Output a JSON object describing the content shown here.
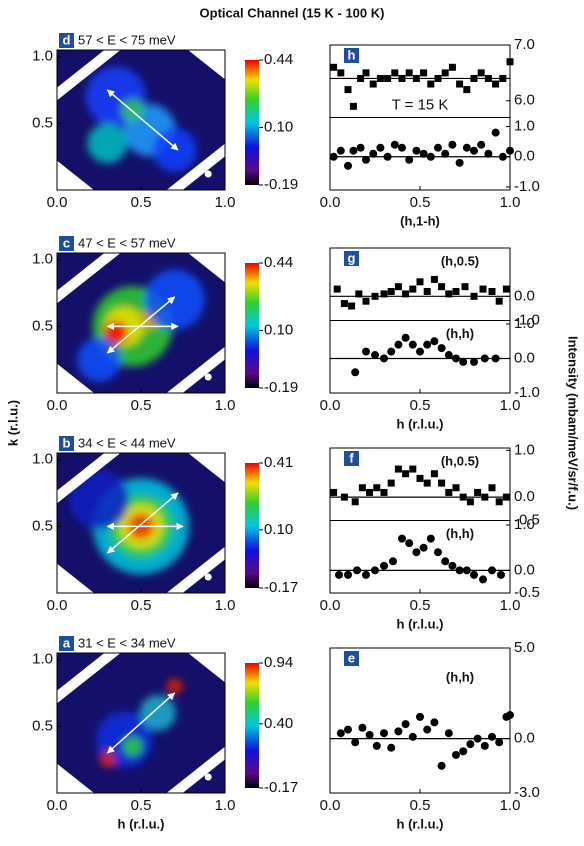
{
  "title": "Optical Channel (15 K - 100 K)",
  "k_label": "k (r.l.u.)",
  "intensity_label": "Intensity (mbam/meV/sr/f.u.)",
  "chart_data": [
    {
      "type": "heatmap",
      "panel": "d",
      "title": "57 < E < 75 meV",
      "xlim": [
        0,
        1
      ],
      "ylim": [
        0,
        1.05
      ],
      "xticks": [
        {
          "value": 0,
          "label": "0.0"
        },
        0.5,
        {
          "value": 1,
          "label": "1.0"
        }
      ],
      "yticks": [
        0.5,
        {
          "value": 1,
          "label": "1.0"
        }
      ],
      "zlim": [
        -0.19,
        0.44
      ],
      "zticks": [
        0.44,
        {
          "value": 0.1,
          "label": "0.10"
        },
        -0.19
      ]
    },
    {
      "type": "heatmap",
      "panel": "c",
      "title": "47 < E < 57 meV",
      "xlim": [
        0,
        1
      ],
      "ylim": [
        0,
        1.05
      ],
      "xticks": [
        {
          "value": 0,
          "label": "0.0"
        },
        0.5,
        {
          "value": 1,
          "label": "1.0"
        }
      ],
      "yticks": [
        0.5,
        {
          "value": 1,
          "label": "1.0"
        }
      ],
      "zlim": [
        -0.19,
        0.44
      ],
      "zticks": [
        0.44,
        {
          "value": 0.1,
          "label": "0.10"
        },
        -0.19
      ]
    },
    {
      "type": "heatmap",
      "panel": "b",
      "title": "34 < E < 44 meV",
      "xlim": [
        0,
        1
      ],
      "ylim": [
        0,
        1.05
      ],
      "xticks": [
        {
          "value": 0,
          "label": "0.0"
        },
        0.5,
        {
          "value": 1,
          "label": "1.0"
        }
      ],
      "yticks": [
        0.5,
        {
          "value": 1,
          "label": "1.0"
        }
      ],
      "zlim": [
        -0.17,
        0.41
      ],
      "zticks": [
        0.41,
        {
          "value": 0.1,
          "label": "0.10"
        },
        -0.17
      ]
    },
    {
      "type": "heatmap",
      "panel": "a",
      "title": "31 < E < 34 meV",
      "xlim": [
        0,
        1
      ],
      "ylim": [
        0,
        1.05
      ],
      "xticks": [
        {
          "value": 0,
          "label": "0.0"
        },
        0.5,
        {
          "value": 1,
          "label": "1.0"
        }
      ],
      "yticks": [
        0.5,
        {
          "value": 1,
          "label": "1.0"
        }
      ],
      "zlim": [
        -0.17,
        0.94
      ],
      "zticks": [
        0.94,
        {
          "value": 0.4,
          "label": "0.40"
        },
        -0.17
      ],
      "xlabel": "h (r.l.u.)"
    },
    {
      "type": "scatter",
      "panel": "h",
      "xlim": [
        0,
        1
      ],
      "xticks": [
        {
          "value": 0,
          "label": "0.0"
        },
        0.5,
        {
          "value": 1,
          "label": "1.0"
        }
      ],
      "xlabel": "(h,1-h)",
      "subplots": [
        {
          "marker": "square",
          "ylim": [
            5.7,
            7.0
          ],
          "yticks": [
            {
              "value": 7,
              "label": "7.0"
            },
            {
              "value": 6,
              "label": "6.0"
            }
          ],
          "annotation": "T = 15 K",
          "fit": 6.4,
          "x": [
            0.02,
            0.06,
            0.1,
            0.13,
            0.17,
            0.2,
            0.24,
            0.28,
            0.32,
            0.36,
            0.4,
            0.44,
            0.48,
            0.52,
            0.56,
            0.6,
            0.64,
            0.68,
            0.72,
            0.76,
            0.8,
            0.84,
            0.88,
            0.92,
            0.96,
            1.0
          ],
          "values": [
            6.6,
            6.5,
            6.2,
            5.9,
            6.4,
            6.5,
            6.3,
            6.4,
            6.4,
            6.5,
            6.4,
            6.5,
            6.4,
            6.5,
            6.3,
            6.4,
            6.5,
            6.6,
            6.3,
            6.2,
            6.4,
            6.5,
            6.4,
            6.3,
            6.4,
            6.7
          ]
        },
        {
          "marker": "circle",
          "ylim": [
            -1.1,
            1.3
          ],
          "yticks": [
            {
              "value": 1,
              "label": "1.0"
            },
            {
              "value": 0,
              "label": "0.0"
            },
            {
              "value": -1,
              "label": "-1.0"
            }
          ],
          "fit": 0,
          "x": [
            0.02,
            0.06,
            0.1,
            0.13,
            0.17,
            0.2,
            0.24,
            0.28,
            0.32,
            0.36,
            0.4,
            0.44,
            0.48,
            0.52,
            0.56,
            0.6,
            0.64,
            0.68,
            0.72,
            0.76,
            0.8,
            0.84,
            0.88,
            0.92,
            0.96,
            1.0
          ],
          "values": [
            0.0,
            0.2,
            -0.3,
            0.2,
            0.3,
            -0.1,
            0.1,
            0.3,
            0.0,
            0.4,
            0.3,
            -0.1,
            0.2,
            0.1,
            0.0,
            0.3,
            0.1,
            0.4,
            -0.2,
            0.3,
            0.2,
            0.4,
            0.1,
            0.8,
            0.0,
            0.2
          ]
        }
      ]
    },
    {
      "type": "scatter",
      "panel": "g",
      "xlim": [
        0,
        1
      ],
      "xticks": [
        {
          "value": 0,
          "label": "0.0"
        },
        0.5,
        {
          "value": 1,
          "label": "1.0"
        }
      ],
      "xlabel": "h (r.l.u.)",
      "subplots": [
        {
          "marker": "square",
          "ylim": [
            -1.0,
            2.0
          ],
          "yticks": [
            {
              "value": 0,
              "label": "0.0"
            },
            {
              "value": -1,
              "label": "-1.0"
            }
          ],
          "label": "(h,0.5)",
          "fit": 0,
          "x": [
            0.04,
            0.08,
            0.12,
            0.16,
            0.2,
            0.25,
            0.3,
            0.34,
            0.38,
            0.42,
            0.46,
            0.5,
            0.54,
            0.58,
            0.62,
            0.66,
            0.7,
            0.75,
            0.8,
            0.85,
            0.9,
            0.94,
            0.98
          ],
          "values": [
            0.3,
            -0.3,
            -0.4,
            0.1,
            -0.2,
            0.0,
            0.1,
            0.2,
            0.4,
            0.1,
            0.3,
            0.6,
            0.2,
            0.7,
            0.4,
            0.1,
            0.2,
            0.4,
            0.0,
            0.3,
            0.2,
            -0.2,
            0.3
          ]
        },
        {
          "marker": "circle",
          "ylim": [
            -1.0,
            1.1
          ],
          "yticks": [
            {
              "value": 1,
              "label": "1.0"
            },
            {
              "value": 0,
              "label": "0.0"
            },
            {
              "value": -1,
              "label": "-1.0"
            }
          ],
          "label": "(h,h)",
          "fit": 0,
          "x": [
            0.14,
            0.2,
            0.25,
            0.3,
            0.34,
            0.38,
            0.42,
            0.46,
            0.5,
            0.54,
            0.58,
            0.62,
            0.66,
            0.7,
            0.74,
            0.8,
            0.86,
            0.92
          ],
          "values": [
            -0.4,
            0.2,
            0.1,
            0.0,
            0.2,
            0.4,
            0.6,
            0.4,
            0.2,
            0.4,
            0.5,
            0.3,
            0.1,
            0.0,
            -0.1,
            -0.1,
            0.0,
            0.0
          ]
        }
      ]
    },
    {
      "type": "scatter",
      "panel": "f",
      "xlim": [
        0,
        1
      ],
      "xticks": [
        {
          "value": 0,
          "label": "0.0"
        },
        0.5,
        {
          "value": 1,
          "label": "1.0"
        }
      ],
      "xlabel": "h (r.l.u.)",
      "subplots": [
        {
          "marker": "square",
          "ylim": [
            -0.5,
            1.05
          ],
          "yticks": [
            {
              "value": 1,
              "label": "1.0"
            },
            {
              "value": 0,
              "label": "0.0"
            },
            -0.5
          ],
          "label": "(h,0.5)",
          "fit": 0,
          "x": [
            0.02,
            0.08,
            0.14,
            0.18,
            0.22,
            0.26,
            0.3,
            0.34,
            0.38,
            0.42,
            0.46,
            0.5,
            0.54,
            0.58,
            0.62,
            0.66,
            0.7,
            0.74,
            0.78,
            0.82,
            0.86,
            0.9,
            0.94,
            0.98
          ],
          "values": [
            0.1,
            0.0,
            -0.1,
            0.2,
            0.1,
            0.2,
            0.1,
            0.3,
            0.6,
            0.5,
            0.6,
            0.4,
            0.3,
            0.5,
            0.3,
            0.1,
            0.2,
            0.0,
            -0.1,
            0.1,
            0.0,
            0.2,
            -0.1,
            0.0
          ]
        },
        {
          "marker": "circle",
          "ylim": [
            -0.5,
            1.1
          ],
          "yticks": [
            {
              "value": 1,
              "label": "1.0"
            },
            {
              "value": 0,
              "label": "0.0"
            },
            -0.5
          ],
          "label": "(h,h)",
          "fit": 0,
          "x": [
            0.05,
            0.1,
            0.15,
            0.2,
            0.25,
            0.3,
            0.35,
            0.4,
            0.44,
            0.48,
            0.52,
            0.56,
            0.6,
            0.64,
            0.68,
            0.72,
            0.76,
            0.8,
            0.85,
            0.9,
            0.95
          ],
          "values": [
            -0.1,
            -0.1,
            0.0,
            -0.1,
            0.0,
            0.1,
            0.2,
            0.7,
            0.6,
            0.4,
            0.5,
            0.7,
            0.4,
            0.2,
            0.1,
            0.0,
            0.0,
            -0.1,
            -0.2,
            0.0,
            -0.1
          ]
        }
      ]
    },
    {
      "type": "scatter",
      "panel": "e",
      "xlim": [
        0,
        1
      ],
      "xticks": [
        {
          "value": 0,
          "label": "0.0"
        },
        0.5,
        {
          "value": 1,
          "label": "1.0"
        }
      ],
      "xlabel": "h (r.l.u.)",
      "subplots": [
        {
          "marker": "circle",
          "ylim": [
            -3,
            5
          ],
          "yticks": [
            {
              "value": 5,
              "label": "5.0"
            },
            {
              "value": 0,
              "label": "0.0"
            },
            {
              "value": -3,
              "label": "-3.0"
            }
          ],
          "label": "(h,h)",
          "fit": 0,
          "x": [
            0.06,
            0.1,
            0.14,
            0.18,
            0.22,
            0.26,
            0.3,
            0.34,
            0.38,
            0.42,
            0.46,
            0.5,
            0.54,
            0.58,
            0.62,
            0.66,
            0.7,
            0.74,
            0.78,
            0.82,
            0.86,
            0.9,
            0.94,
            0.98,
            1.0
          ],
          "values": [
            0.3,
            0.5,
            -0.2,
            0.6,
            0.2,
            -0.4,
            0.3,
            -0.5,
            0.4,
            0.8,
            0.1,
            1.2,
            0.5,
            0.9,
            -1.5,
            0.3,
            -0.9,
            -0.7,
            -0.3,
            0.0,
            -0.4,
            0.1,
            -0.2,
            1.2,
            1.3
          ]
        }
      ]
    }
  ]
}
